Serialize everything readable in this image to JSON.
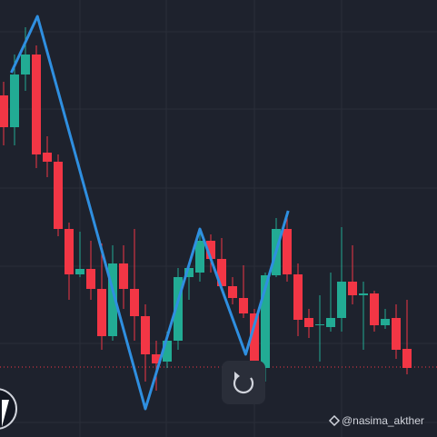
{
  "chart_data": {
    "type": "candlestick",
    "open": [
      376,
      341,
      399,
      421,
      313,
      303,
      229,
      179,
      185,
      163,
      111,
      191,
      163,
      133,
      91,
      83,
      106,
      176,
      181,
      216,
      196,
      166,
      153,
      136,
      76,
      178,
      229,
      179,
      131,
      123,
      121,
      131,
      171,
      156,
      158,
      123,
      131,
      97
    ],
    "close": [
      341,
      399,
      421,
      311,
      303,
      229,
      179,
      185,
      163,
      111,
      191,
      163,
      133,
      91,
      81,
      106,
      176,
      186,
      216,
      196,
      166,
      153,
      136,
      71,
      178,
      229,
      179,
      129,
      121,
      124,
      131,
      171,
      156,
      158,
      123,
      130,
      96,
      76
    ],
    "high": [
      391,
      421,
      451,
      431,
      331,
      311,
      236,
      226,
      216,
      213,
      211,
      211,
      229,
      146,
      106,
      116,
      186,
      191,
      226,
      223,
      219,
      176,
      189,
      141,
      181,
      241,
      249,
      191,
      141,
      156,
      181,
      231,
      211,
      171,
      161,
      141,
      146,
      151
    ],
    "low": [
      321,
      321,
      381,
      296,
      286,
      221,
      151,
      176,
      151,
      96,
      106,
      141,
      106,
      61,
      51,
      76,
      96,
      151,
      171,
      181,
      161,
      146,
      131,
      61,
      61,
      176,
      171,
      111,
      109,
      83,
      116,
      116,
      146,
      96,
      116,
      119,
      86,
      69
    ],
    "up_color": "#22ab94",
    "down_color": "#f23645",
    "ylim": [
      0,
      481
    ],
    "overlay": {
      "color": "#2f8fe0",
      "x": [
        0.7,
        3.1,
        13,
        18,
        22.2,
        26.1
      ],
      "y": [
        401,
        463,
        31,
        229,
        91,
        249
      ]
    },
    "price_line": {
      "value": 77,
      "color": "#f23645"
    },
    "watermark": "@nasima_akther"
  }
}
